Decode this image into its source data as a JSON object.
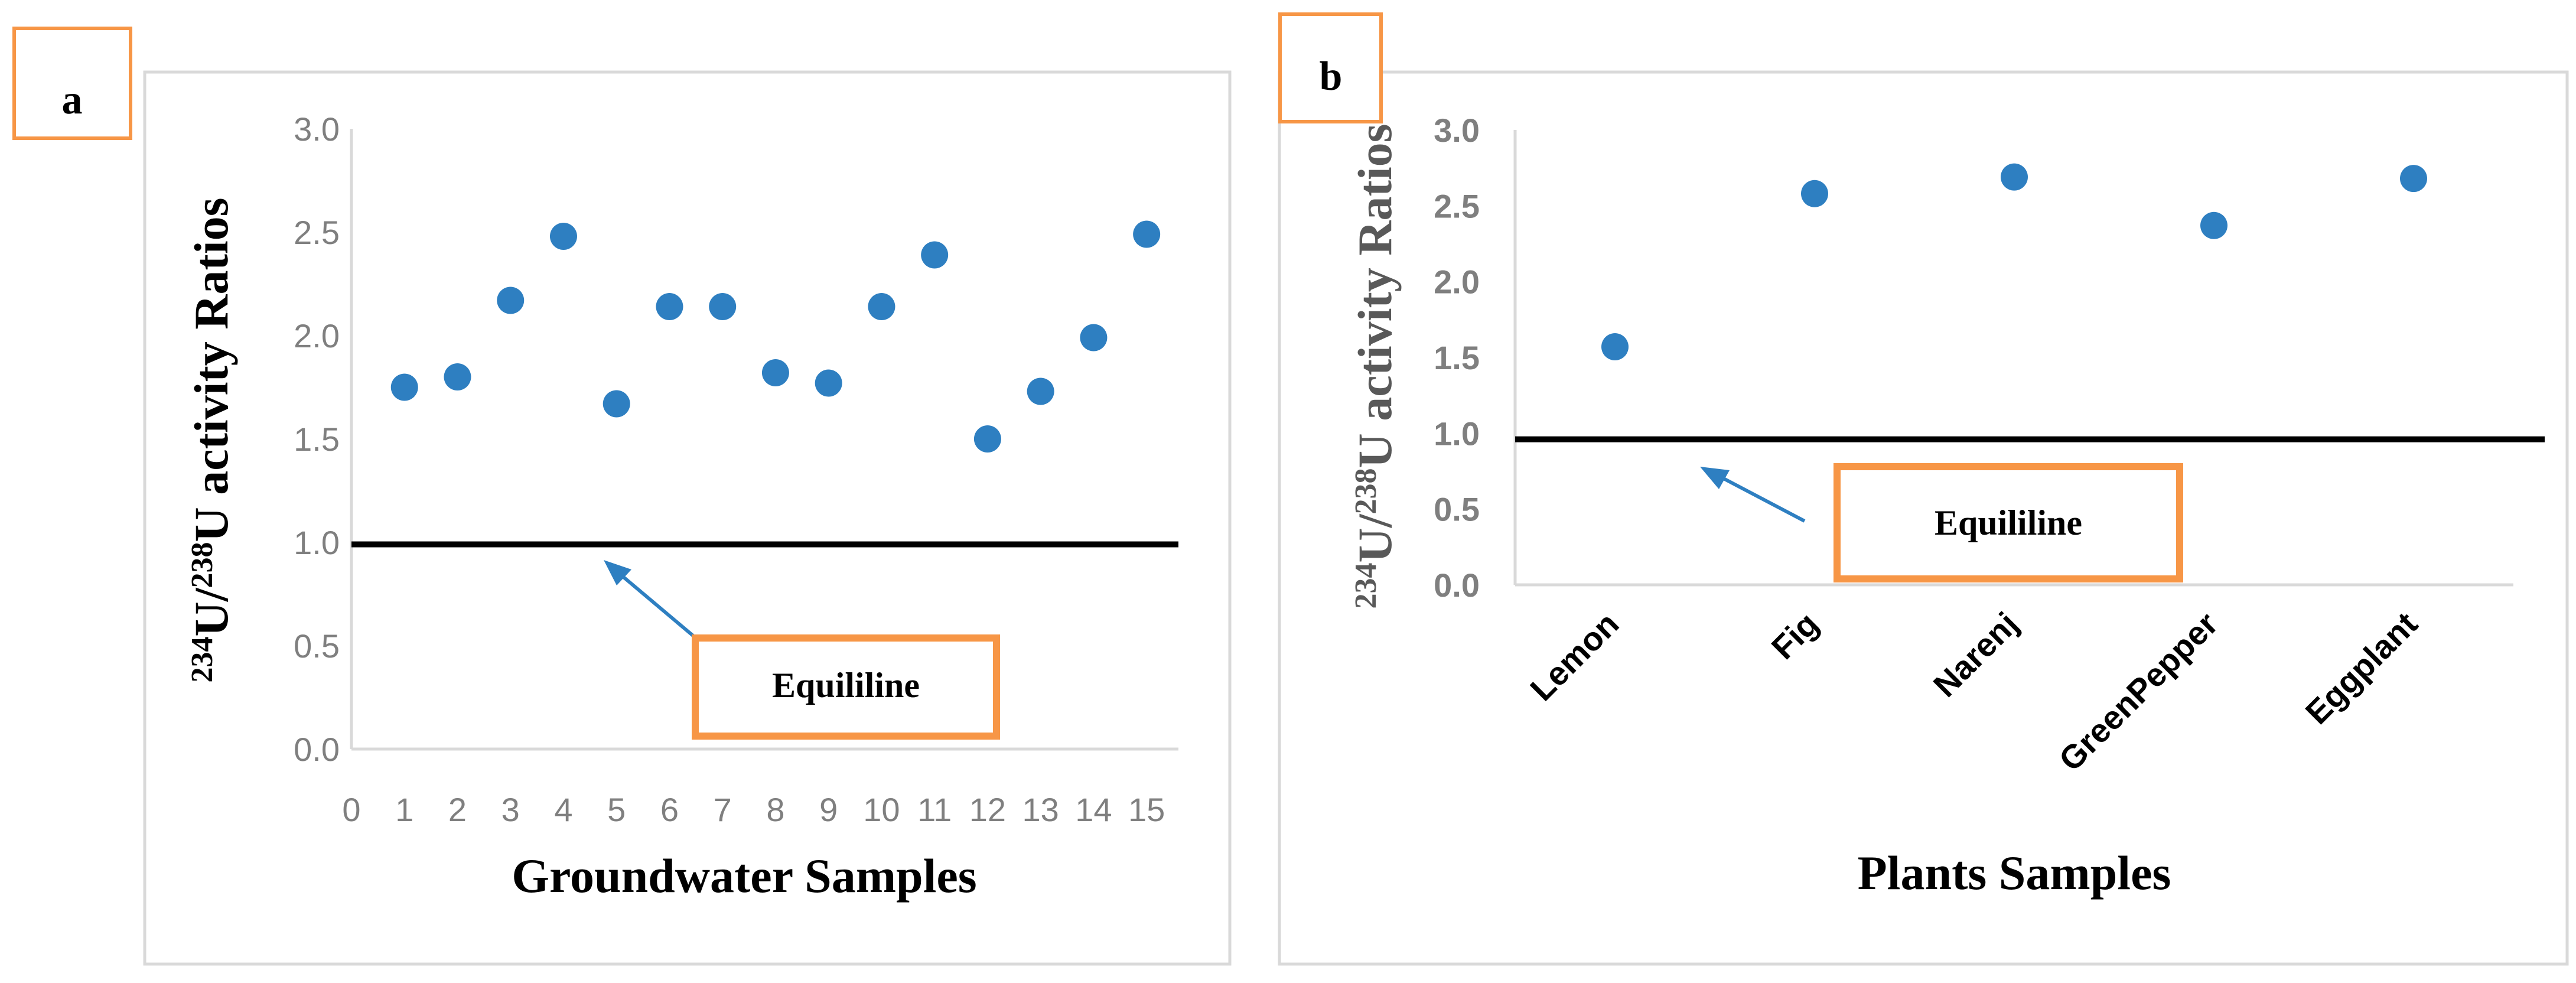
{
  "chart_data": [
    {
      "panel": "a",
      "type": "scatter",
      "xlabel": "Groundwater Samples",
      "ylabel": {
        "iso1_mass": "234",
        "iso2_mass": "238",
        "el": "U",
        "slash": "/",
        "rest": " activity Ratios"
      },
      "xlim": [
        0,
        15
      ],
      "ylim": [
        0,
        3
      ],
      "x_ticks": [
        "0",
        "1",
        "2",
        "3",
        "4",
        "5",
        "6",
        "7",
        "8",
        "9",
        "10",
        "11",
        "12",
        "13",
        "14",
        "15"
      ],
      "y_ticks": [
        "0.0",
        "0.5",
        "1.0",
        "1.5",
        "2.0",
        "2.5",
        "3.0"
      ],
      "x": [
        1,
        2,
        3,
        4,
        5,
        6,
        7,
        8,
        9,
        10,
        11,
        12,
        13,
        14,
        15
      ],
      "values": [
        1.75,
        1.8,
        2.17,
        2.48,
        1.67,
        2.14,
        2.14,
        1.82,
        1.77,
        2.14,
        2.39,
        1.5,
        1.73,
        1.99,
        2.49
      ],
      "reference_line": {
        "y": 0.99,
        "label": "Equililine"
      },
      "point_color": "#2e7fc1",
      "line_color": "#000000"
    },
    {
      "panel": "b",
      "type": "scatter",
      "xlabel": "Plants Samples",
      "ylabel": {
        "iso1_mass": "234",
        "iso2_mass": "238",
        "el": "U",
        "slash": "/",
        "rest": " activity Ratios"
      },
      "ylim": [
        0,
        3
      ],
      "y_ticks": [
        "0.0",
        "0.5",
        "1.0",
        "1.5",
        "2.0",
        "2.5",
        "3.0"
      ],
      "categories": [
        "Lemon",
        "Fig",
        "Narenj",
        "GreenPepper",
        "Eggplant"
      ],
      "values": [
        1.57,
        2.58,
        2.69,
        2.37,
        2.68
      ],
      "reference_line": {
        "y": 0.96,
        "label": "Equililine"
      },
      "point_color": "#2e7fc1",
      "line_color": "#000000"
    }
  ],
  "colors": {
    "label_box": "#f79646",
    "arrow": "#2e7fc1",
    "frame": "#d9d9d9",
    "grid_axis": "#d9d9d9"
  }
}
